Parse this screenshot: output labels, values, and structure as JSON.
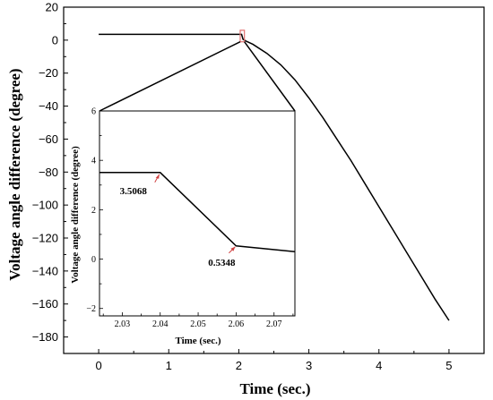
{
  "chart_data": [
    {
      "type": "line",
      "xlabel": "Time (sec.)",
      "ylabel": "Voltage angle difference (degree)",
      "xlim": [
        -0.5,
        5.5
      ],
      "ylim": [
        -190,
        20
      ],
      "xticks": [
        0,
        1,
        2,
        3,
        4,
        5
      ],
      "xtick_labels": [
        "0",
        "1",
        "2",
        "3",
        "4",
        "5"
      ],
      "yticks": [
        20,
        0,
        -20,
        -40,
        -60,
        -80,
        -100,
        -120,
        -140,
        -160,
        -180
      ],
      "ytick_labels": [
        "20",
        "0",
        "−20",
        "−40",
        "−60",
        "−80",
        "−100",
        "−120",
        "−140",
        "−160",
        "−180"
      ],
      "series": [
        {
          "x": [
            0,
            2.04,
            2.06,
            2.1,
            2.2,
            2.4,
            2.6,
            2.8,
            3.0,
            3.2,
            3.4,
            3.6,
            3.8,
            4.0,
            4.2,
            4.4,
            4.6,
            4.8,
            5.0
          ],
          "y": [
            3.5068,
            3.5068,
            0.5348,
            -0.5,
            -2.5,
            -8,
            -15,
            -24,
            -35,
            -47,
            -60,
            -73,
            -87,
            -101,
            -115,
            -129,
            -143,
            -157,
            -170
          ]
        }
      ],
      "highlight_box": {
        "x": [
          2.02,
          2.08
        ],
        "y": [
          -1,
          6
        ]
      },
      "grid": false
    },
    {
      "type": "line",
      "inset": true,
      "xlabel": "Time (sec.)",
      "ylabel": "Voltage angle difference (degree)",
      "xlim": [
        2.024,
        2.0755
      ],
      "ylim": [
        -2.3,
        6
      ],
      "xticks": [
        2.03,
        2.04,
        2.05,
        2.06,
        2.07
      ],
      "xtick_labels": [
        "2.03",
        "2.04",
        "2.05",
        "2.06",
        "2.07"
      ],
      "yticks": [
        -2,
        0,
        2,
        4,
        6
      ],
      "ytick_labels": [
        "−2",
        "0",
        "2",
        "4",
        "6"
      ],
      "series": [
        {
          "x": [
            2.024,
            2.04,
            2.06,
            2.0755
          ],
          "y": [
            3.5068,
            3.5068,
            0.5348,
            0.3
          ]
        }
      ],
      "annotations": [
        {
          "text": "3.5068",
          "x": 2.04,
          "y": 3.5068
        },
        {
          "text": "0.5348",
          "x": 2.06,
          "y": 0.5348
        }
      ],
      "grid": false
    }
  ]
}
